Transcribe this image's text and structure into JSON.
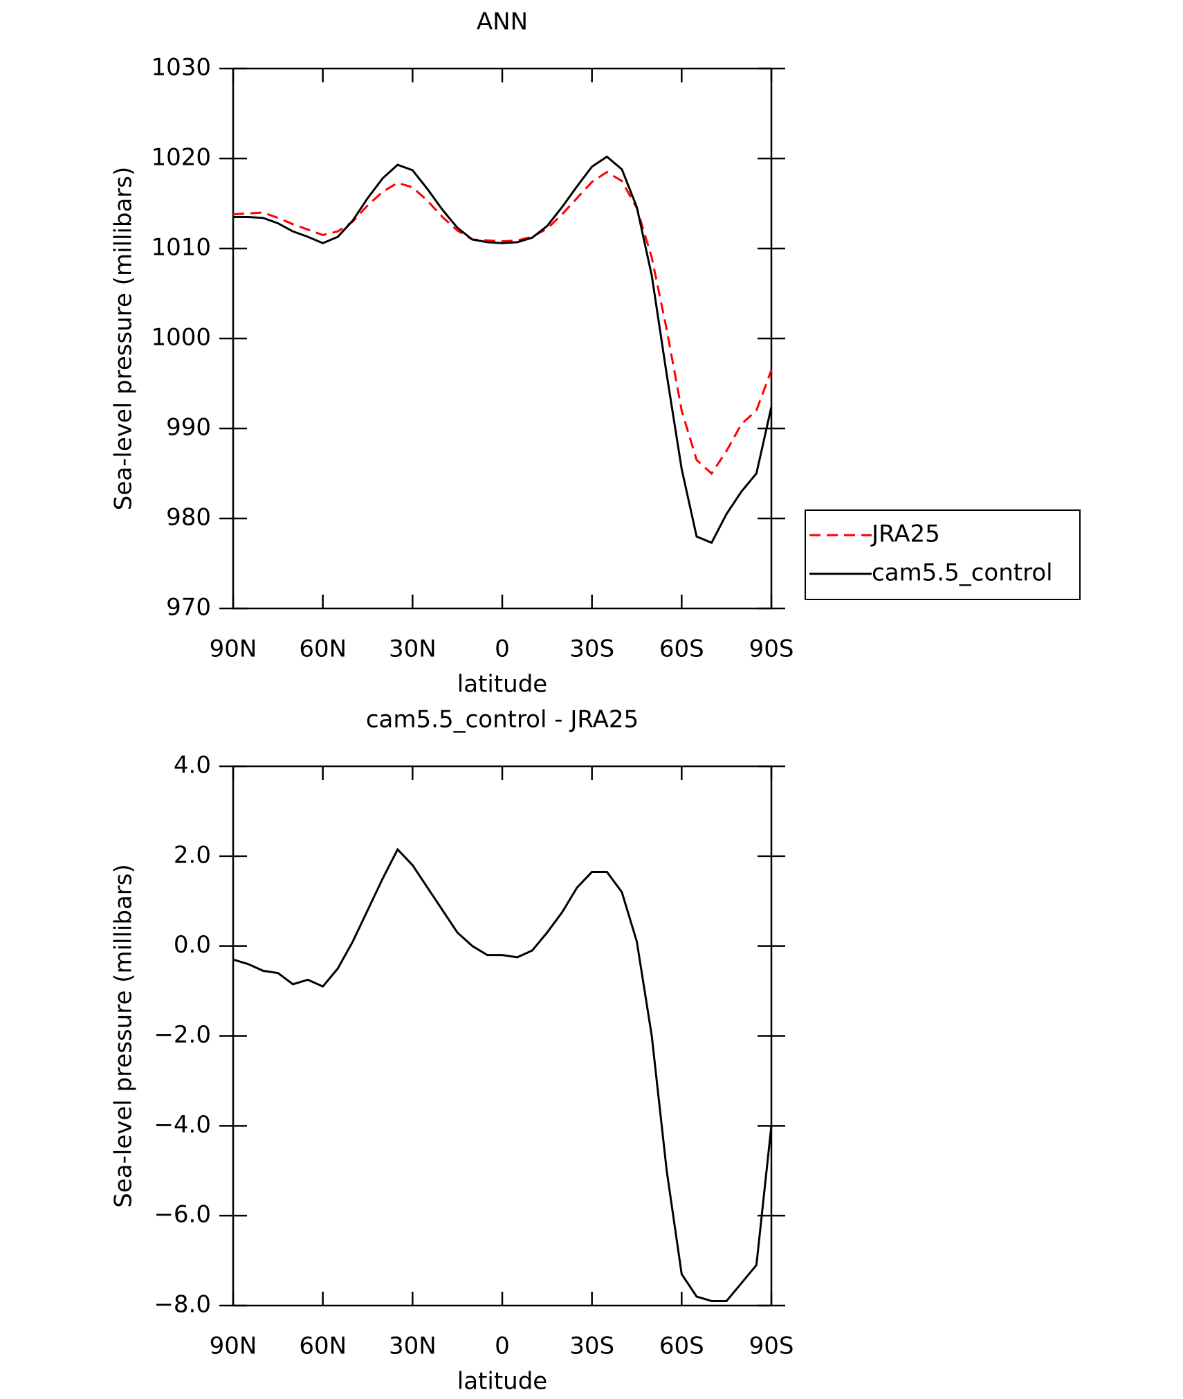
{
  "chart_data": [
    {
      "type": "line",
      "title": "ANN",
      "x_label": "latitude",
      "y_label": "Sea-level pressure (millibars)",
      "x": [
        90,
        85,
        80,
        75,
        70,
        65,
        60,
        55,
        50,
        45,
        40,
        35,
        30,
        25,
        20,
        15,
        10,
        5,
        0,
        -5,
        -10,
        -15,
        -20,
        -25,
        -30,
        -35,
        -40,
        -45,
        -50,
        -55,
        -60,
        -65,
        -70,
        -75,
        -80,
        -85,
        -90
      ],
      "series": [
        {
          "name": "JRA25",
          "color": "#ff0000",
          "dash": true,
          "values": [
            1013.8,
            1013.9,
            1014.0,
            1013.4,
            1012.7,
            1012.1,
            1011.5,
            1011.9,
            1013.0,
            1014.8,
            1016.3,
            1017.3,
            1016.8,
            1015.3,
            1013.5,
            1012.0,
            1011.0,
            1010.9,
            1010.8,
            1010.9,
            1011.3,
            1012.2,
            1013.8,
            1015.6,
            1017.4,
            1018.5,
            1017.5,
            1014.5,
            1009.0,
            1001.0,
            992.0,
            986.5,
            985.0,
            987.5,
            990.5,
            992.0,
            996.5
          ]
        },
        {
          "name": "cam5.5_control",
          "color": "#000000",
          "dash": false,
          "values": [
            1013.5,
            1013.5,
            1013.4,
            1012.8,
            1011.9,
            1011.3,
            1010.6,
            1011.3,
            1013.1,
            1015.6,
            1017.8,
            1019.3,
            1018.7,
            1016.6,
            1014.3,
            1012.3,
            1011.0,
            1010.7,
            1010.6,
            1010.7,
            1011.2,
            1012.5,
            1014.6,
            1016.9,
            1019.1,
            1020.2,
            1018.8,
            1014.6,
            1007.0,
            996.0,
            985.5,
            978.0,
            977.3,
            980.5,
            983.0,
            985.0,
            992.4
          ]
        }
      ],
      "xlim": [
        90,
        -90
      ],
      "xticks": [
        {
          "value": 90,
          "label": "90N"
        },
        {
          "value": 60,
          "label": "60N"
        },
        {
          "value": 30,
          "label": "30N"
        },
        0,
        {
          "value": -30,
          "label": "30S"
        },
        {
          "value": -60,
          "label": "60S"
        },
        {
          "value": -90,
          "label": "90S"
        }
      ],
      "ylim": [
        970,
        1030
      ],
      "yticks": [
        970,
        980,
        990,
        1000,
        1010,
        1020,
        1030
      ],
      "legend": "outside-right"
    },
    {
      "type": "line",
      "title": "cam5.5_control - JRA25",
      "x_label": "latitude",
      "y_label": "Sea-level pressure (millibars)",
      "x": [
        90,
        85,
        80,
        75,
        70,
        65,
        60,
        55,
        50,
        45,
        40,
        35,
        30,
        25,
        20,
        15,
        10,
        5,
        0,
        -5,
        -10,
        -15,
        -20,
        -25,
        -30,
        -35,
        -40,
        -45,
        -50,
        -55,
        -60,
        -65,
        -70,
        -75,
        -80,
        -85,
        -90
      ],
      "series": [
        {
          "color": "#000000",
          "dash": false,
          "values": [
            -0.3,
            -0.4,
            -0.55,
            -0.6,
            -0.85,
            -0.75,
            -0.9,
            -0.5,
            0.1,
            0.8,
            1.5,
            2.15,
            1.8,
            1.3,
            0.8,
            0.3,
            0.0,
            -0.2,
            -0.2,
            -0.25,
            -0.1,
            0.3,
            0.75,
            1.3,
            1.65,
            1.65,
            1.2,
            0.1,
            -2.0,
            -5.0,
            -7.3,
            -7.8,
            -7.9,
            -7.9,
            -7.5,
            -7.1,
            -4.0
          ]
        }
      ],
      "xlim": [
        90,
        -90
      ],
      "xticks": [
        {
          "value": 90,
          "label": "90N"
        },
        {
          "value": 60,
          "label": "60N"
        },
        {
          "value": 30,
          "label": "30N"
        },
        0,
        {
          "value": -30,
          "label": "30S"
        },
        {
          "value": -60,
          "label": "60S"
        },
        {
          "value": -90,
          "label": "90S"
        }
      ],
      "ylim": [
        -8,
        4
      ],
      "yticks": [
        {
          "value": -8,
          "label": "−8.0"
        },
        {
          "value": -6,
          "label": "−6.0"
        },
        {
          "value": -4,
          "label": "−4.0"
        },
        {
          "value": -2,
          "label": "−2.0"
        },
        {
          "value": 0,
          "label": "0.0"
        },
        {
          "value": 2,
          "label": "2.0"
        },
        {
          "value": 4,
          "label": "4.0"
        }
      ]
    }
  ]
}
